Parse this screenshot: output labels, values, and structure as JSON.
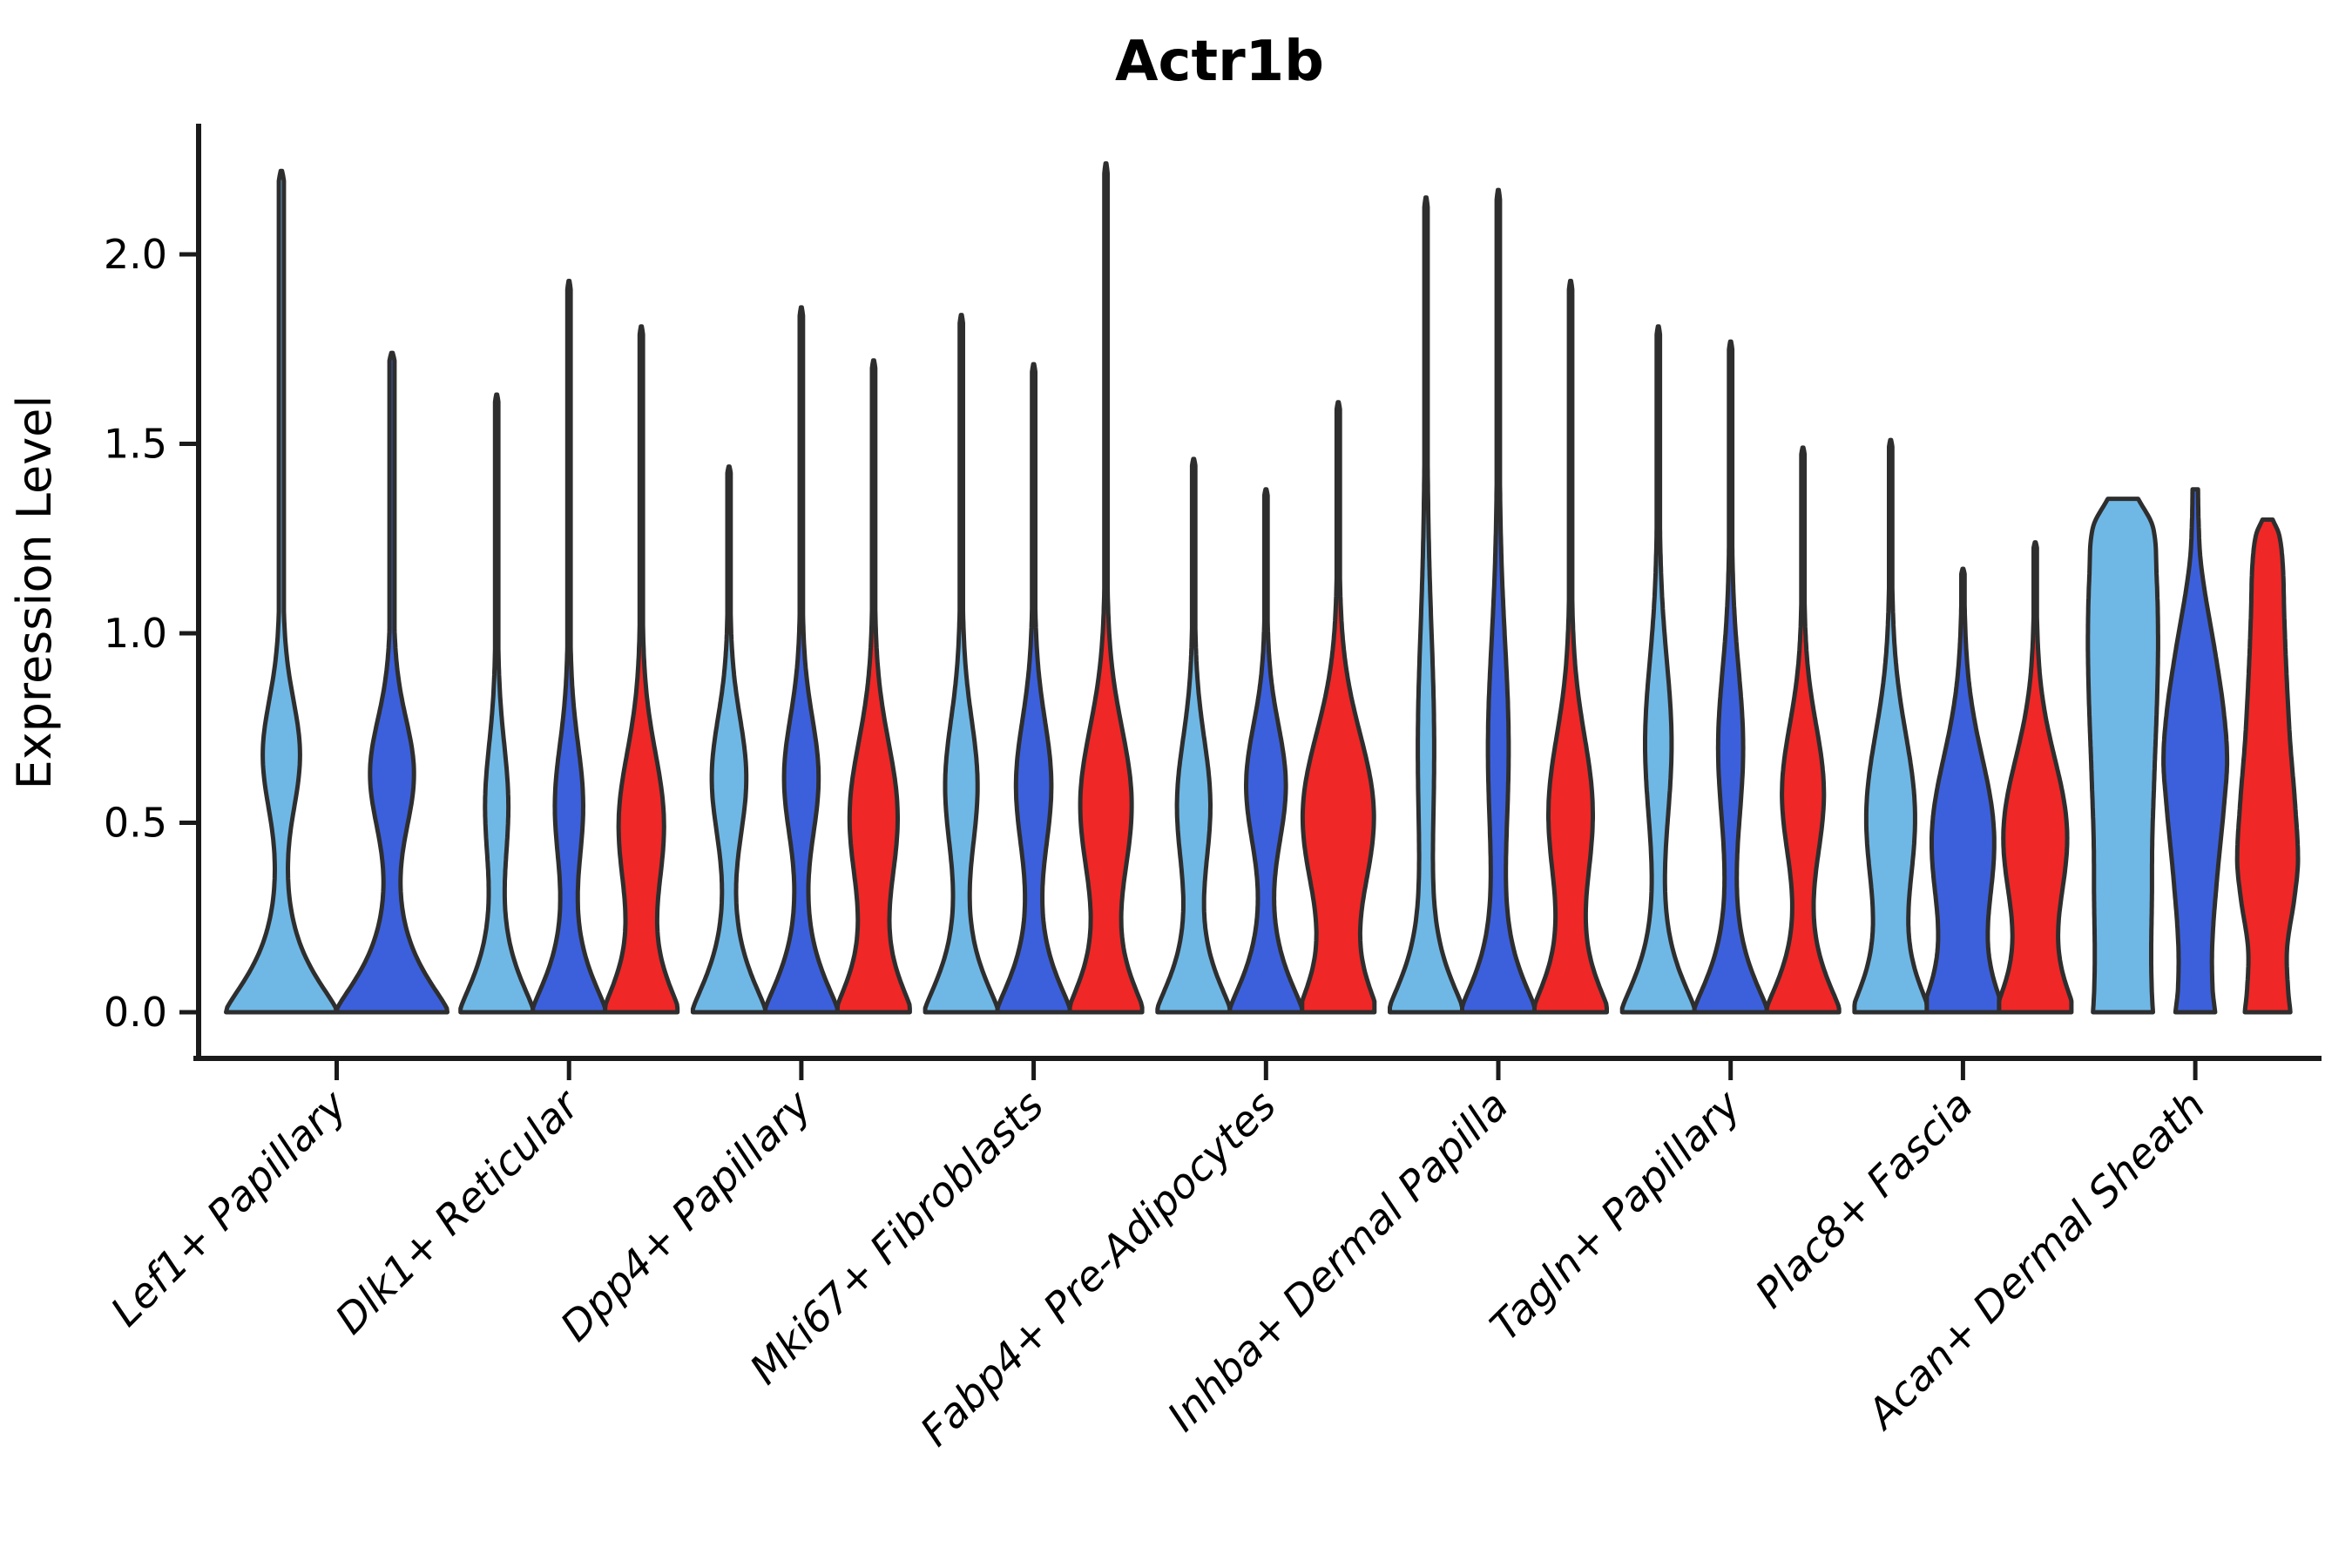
{
  "title": "Actr1b",
  "axes": {
    "y_label": "Expression Level",
    "y_tick_labels": [
      "0.0",
      "0.5",
      "1.0",
      "1.5",
      "2.0"
    ],
    "x_tick_labels": [
      "Lef1+ Papillary",
      "Dlk1+ Reticular",
      "Dpp4+ Papillary",
      "Mki67+ Fibroblasts",
      "Fabp4+ Pre-Adipocytes",
      "Inhba+ Dermal Papilla",
      "Tagln+ Papillary",
      "Plac8+ Fascia",
      "Acan+ Dermal Sheath"
    ]
  },
  "colors": {
    "light_blue": "#6FB8E6",
    "dark_blue": "#3C60DC",
    "red": "#EF2727",
    "outline": "#2E2E2E",
    "axis": "#1A1A1A",
    "text": "#000000",
    "background": "#FFFFFF"
  },
  "chart_data": {
    "type": "violin",
    "title": "Actr1b",
    "xlabel": "",
    "ylabel": "Expression Level",
    "ylim": [
      0,
      2.35
    ],
    "yticks": [
      0.0,
      0.5,
      1.0,
      1.5,
      2.0
    ],
    "grid": false,
    "legend_position": "none",
    "hue_order": [
      "light_blue",
      "dark_blue",
      "red"
    ],
    "hue_colors": {
      "light_blue": "#6FB8E6",
      "dark_blue": "#3C60DC",
      "red": "#EF2727"
    },
    "outline_color": "#2E2E2E",
    "categories": [
      "Lef1+ Papillary",
      "Dlk1+ Reticular",
      "Dpp4+ Papillary",
      "Mki67+ Fibroblasts",
      "Fabp4+ Pre-Adipocytes",
      "Inhba+ Dermal Papilla",
      "Tagln+ Papillary",
      "Plac8+ Fascia",
      "Acan+ Dermal Sheath"
    ],
    "groups": [
      {
        "label": "Lef1+ Papillary",
        "violins": [
          {
            "hue": "light_blue",
            "shape": "spike",
            "max": 2.22,
            "mu": 0.68,
            "sig": 0.2,
            "amp": 0.28
          },
          {
            "hue": "dark_blue",
            "shape": "spike",
            "max": 1.74,
            "mu": 0.63,
            "sig": 0.2,
            "amp": 0.34
          }
        ]
      },
      {
        "label": "Dlk1+ Reticular",
        "violins": [
          {
            "hue": "light_blue",
            "shape": "spike",
            "max": 1.63,
            "mu": 0.55,
            "sig": 0.22,
            "amp": 0.26
          },
          {
            "hue": "dark_blue",
            "shape": "spike",
            "max": 1.93,
            "mu": 0.55,
            "sig": 0.22,
            "amp": 0.33
          },
          {
            "hue": "red",
            "shape": "spike",
            "max": 1.81,
            "mu": 0.5,
            "sig": 0.26,
            "amp": 0.56
          }
        ]
      },
      {
        "label": "Dpp4+ Papillary",
        "violins": [
          {
            "hue": "light_blue",
            "shape": "spike",
            "max": 1.44,
            "mu": 0.62,
            "sig": 0.22,
            "amp": 0.42
          },
          {
            "hue": "dark_blue",
            "shape": "spike",
            "max": 1.86,
            "mu": 0.62,
            "sig": 0.22,
            "amp": 0.42
          },
          {
            "hue": "red",
            "shape": "spike",
            "max": 1.72,
            "mu": 0.52,
            "sig": 0.27,
            "amp": 0.6
          }
        ]
      },
      {
        "label": "Mki67+ Fibroblasts",
        "violins": [
          {
            "hue": "light_blue",
            "shape": "spike",
            "max": 1.84,
            "mu": 0.6,
            "sig": 0.24,
            "amp": 0.39
          },
          {
            "hue": "dark_blue",
            "shape": "spike",
            "max": 1.71,
            "mu": 0.6,
            "sig": 0.24,
            "amp": 0.43
          },
          {
            "hue": "red",
            "shape": "spike",
            "max": 2.24,
            "mu": 0.55,
            "sig": 0.28,
            "amp": 0.65
          }
        ]
      },
      {
        "label": "Fabp4+ Pre-Adipocytes",
        "violins": [
          {
            "hue": "light_blue",
            "shape": "spike",
            "max": 1.46,
            "mu": 0.55,
            "sig": 0.24,
            "amp": 0.4
          },
          {
            "hue": "dark_blue",
            "shape": "spike",
            "max": 1.38,
            "mu": 0.6,
            "sig": 0.22,
            "amp": 0.49
          },
          {
            "hue": "red",
            "shape": "spike",
            "max": 1.61,
            "mu": 0.52,
            "sig": 0.3,
            "amp": 0.92
          }
        ]
      },
      {
        "label": "Inhba+ Dermal Papilla",
        "violins": [
          {
            "hue": "light_blue",
            "shape": "spike",
            "max": 2.15,
            "mu": 0.7,
            "sig": 0.42,
            "amp": 0.17
          },
          {
            "hue": "dark_blue",
            "shape": "spike",
            "max": 2.17,
            "mu": 0.7,
            "sig": 0.38,
            "amp": 0.23
          },
          {
            "hue": "red",
            "shape": "spike",
            "max": 1.93,
            "mu": 0.53,
            "sig": 0.28,
            "amp": 0.55
          }
        ]
      },
      {
        "label": "Tagln+ Papillary",
        "violins": [
          {
            "hue": "light_blue",
            "shape": "spike",
            "max": 1.81,
            "mu": 0.71,
            "sig": 0.3,
            "amp": 0.31
          },
          {
            "hue": "dark_blue",
            "shape": "spike",
            "max": 1.77,
            "mu": 0.7,
            "sig": 0.28,
            "amp": 0.29
          },
          {
            "hue": "red",
            "shape": "spike",
            "max": 1.49,
            "mu": 0.58,
            "sig": 0.25,
            "amp": 0.52
          }
        ]
      },
      {
        "label": "Plac8+ Fascia",
        "violins": [
          {
            "hue": "light_blue",
            "shape": "spike",
            "max": 1.51,
            "mu": 0.52,
            "sig": 0.3,
            "amp": 0.61
          },
          {
            "hue": "dark_blue",
            "shape": "spike",
            "max": 1.17,
            "mu": 0.46,
            "sig": 0.3,
            "amp": 0.79
          },
          {
            "hue": "red",
            "shape": "spike",
            "max": 1.24,
            "mu": 0.47,
            "sig": 0.28,
            "amp": 0.81
          }
        ]
      },
      {
        "label": "Acan+ Dermal Sheath",
        "violins": [
          {
            "hue": "light_blue",
            "shape": "column",
            "max": 1.355,
            "profile": [
              [
                0,
                0.83
              ],
              [
                0.05,
                0.8
              ],
              [
                0.15,
                0.78
              ],
              [
                0.3,
                0.8
              ],
              [
                0.45,
                0.81
              ],
              [
                0.63,
                0.87
              ],
              [
                0.85,
                0.95
              ],
              [
                1.0,
                0.97
              ],
              [
                1.15,
                0.93
              ],
              [
                1.28,
                0.83
              ],
              [
                1.355,
                0.42
              ]
            ]
          },
          {
            "hue": "dark_blue",
            "shape": "column",
            "max": 1.38,
            "profile": [
              [
                0,
                0.55
              ],
              [
                0.06,
                0.48
              ],
              [
                0.18,
                0.47
              ],
              [
                0.35,
                0.6
              ],
              [
                0.55,
                0.8
              ],
              [
                0.67,
                0.88
              ],
              [
                0.8,
                0.78
              ],
              [
                0.95,
                0.55
              ],
              [
                1.1,
                0.28
              ],
              [
                1.2,
                0.14
              ],
              [
                1.3,
                0.09
              ],
              [
                1.38,
                0.075
              ]
            ]
          },
          {
            "hue": "red",
            "shape": "column",
            "max": 1.3,
            "profile": [
              [
                0,
                0.63
              ],
              [
                0.07,
                0.56
              ],
              [
                0.17,
                0.54
              ],
              [
                0.3,
                0.74
              ],
              [
                0.4,
                0.84
              ],
              [
                0.55,
                0.76
              ],
              [
                0.72,
                0.62
              ],
              [
                0.9,
                0.52
              ],
              [
                1.05,
                0.46
              ],
              [
                1.18,
                0.42
              ],
              [
                1.26,
                0.32
              ],
              [
                1.3,
                0.14
              ]
            ]
          }
        ]
      }
    ]
  }
}
